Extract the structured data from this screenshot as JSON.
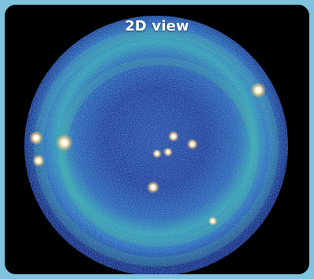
{
  "title": "2D view",
  "colors": {
    "page_background": "#7fc3df",
    "frame_background": "#000000",
    "disk_dark": "#1c2a8a",
    "disk_mid": "#3e72c2",
    "disk_ring": "#3fb0a8",
    "highlight_spot": "#fff6e6",
    "title_text": "#ffffff"
  },
  "icons": {
    "bright-spot": "bright-spot-icon"
  }
}
